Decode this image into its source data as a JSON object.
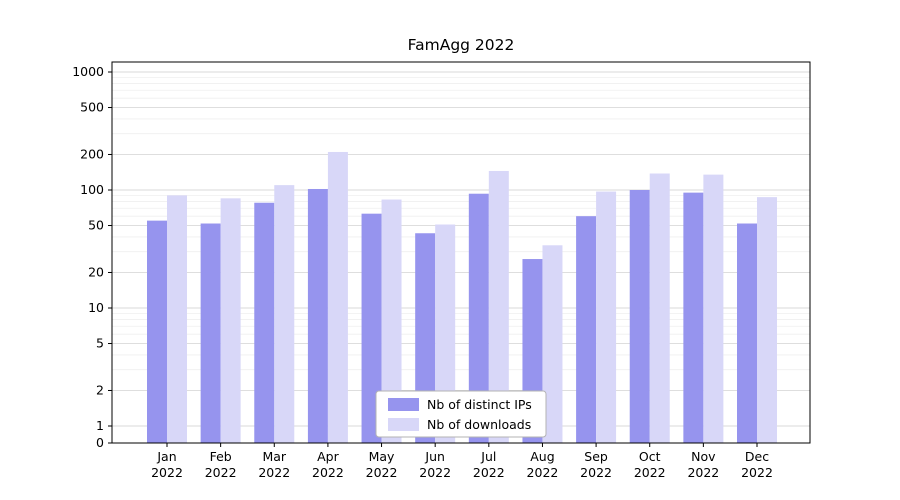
{
  "chart_data": {
    "type": "bar",
    "title": "FamAgg 2022",
    "categories": [
      "Jan 2022",
      "Feb 2022",
      "Mar 2022",
      "Apr 2022",
      "May 2022",
      "Jun 2022",
      "Jul 2022",
      "Aug 2022",
      "Sep 2022",
      "Oct 2022",
      "Nov 2022",
      "Dec 2022"
    ],
    "series": [
      {
        "name": "Nb of distinct IPs",
        "color": "#9694ee",
        "values": [
          55,
          52,
          78,
          102,
          63,
          43,
          93,
          26,
          60,
          100,
          95,
          52
        ]
      },
      {
        "name": "Nb of downloads",
        "color": "#d8d7f8",
        "values": [
          90,
          85,
          110,
          210,
          83,
          51,
          145,
          34,
          97,
          138,
          135,
          87
        ]
      }
    ],
    "yscale": "symlog",
    "yticks": [
      0,
      1,
      2,
      5,
      10,
      20,
      50,
      100,
      200,
      500,
      1000
    ],
    "ylim": [
      0,
      1200
    ],
    "grid": true,
    "legend": {
      "position": "lower center"
    },
    "colors": {
      "background": "#ffffff",
      "axis": "#000000",
      "major_grid": "#d9d9d9",
      "minor_grid": "#efefef",
      "legend_border": "#b3b3b3",
      "legend_fill": "#ffffff"
    }
  }
}
